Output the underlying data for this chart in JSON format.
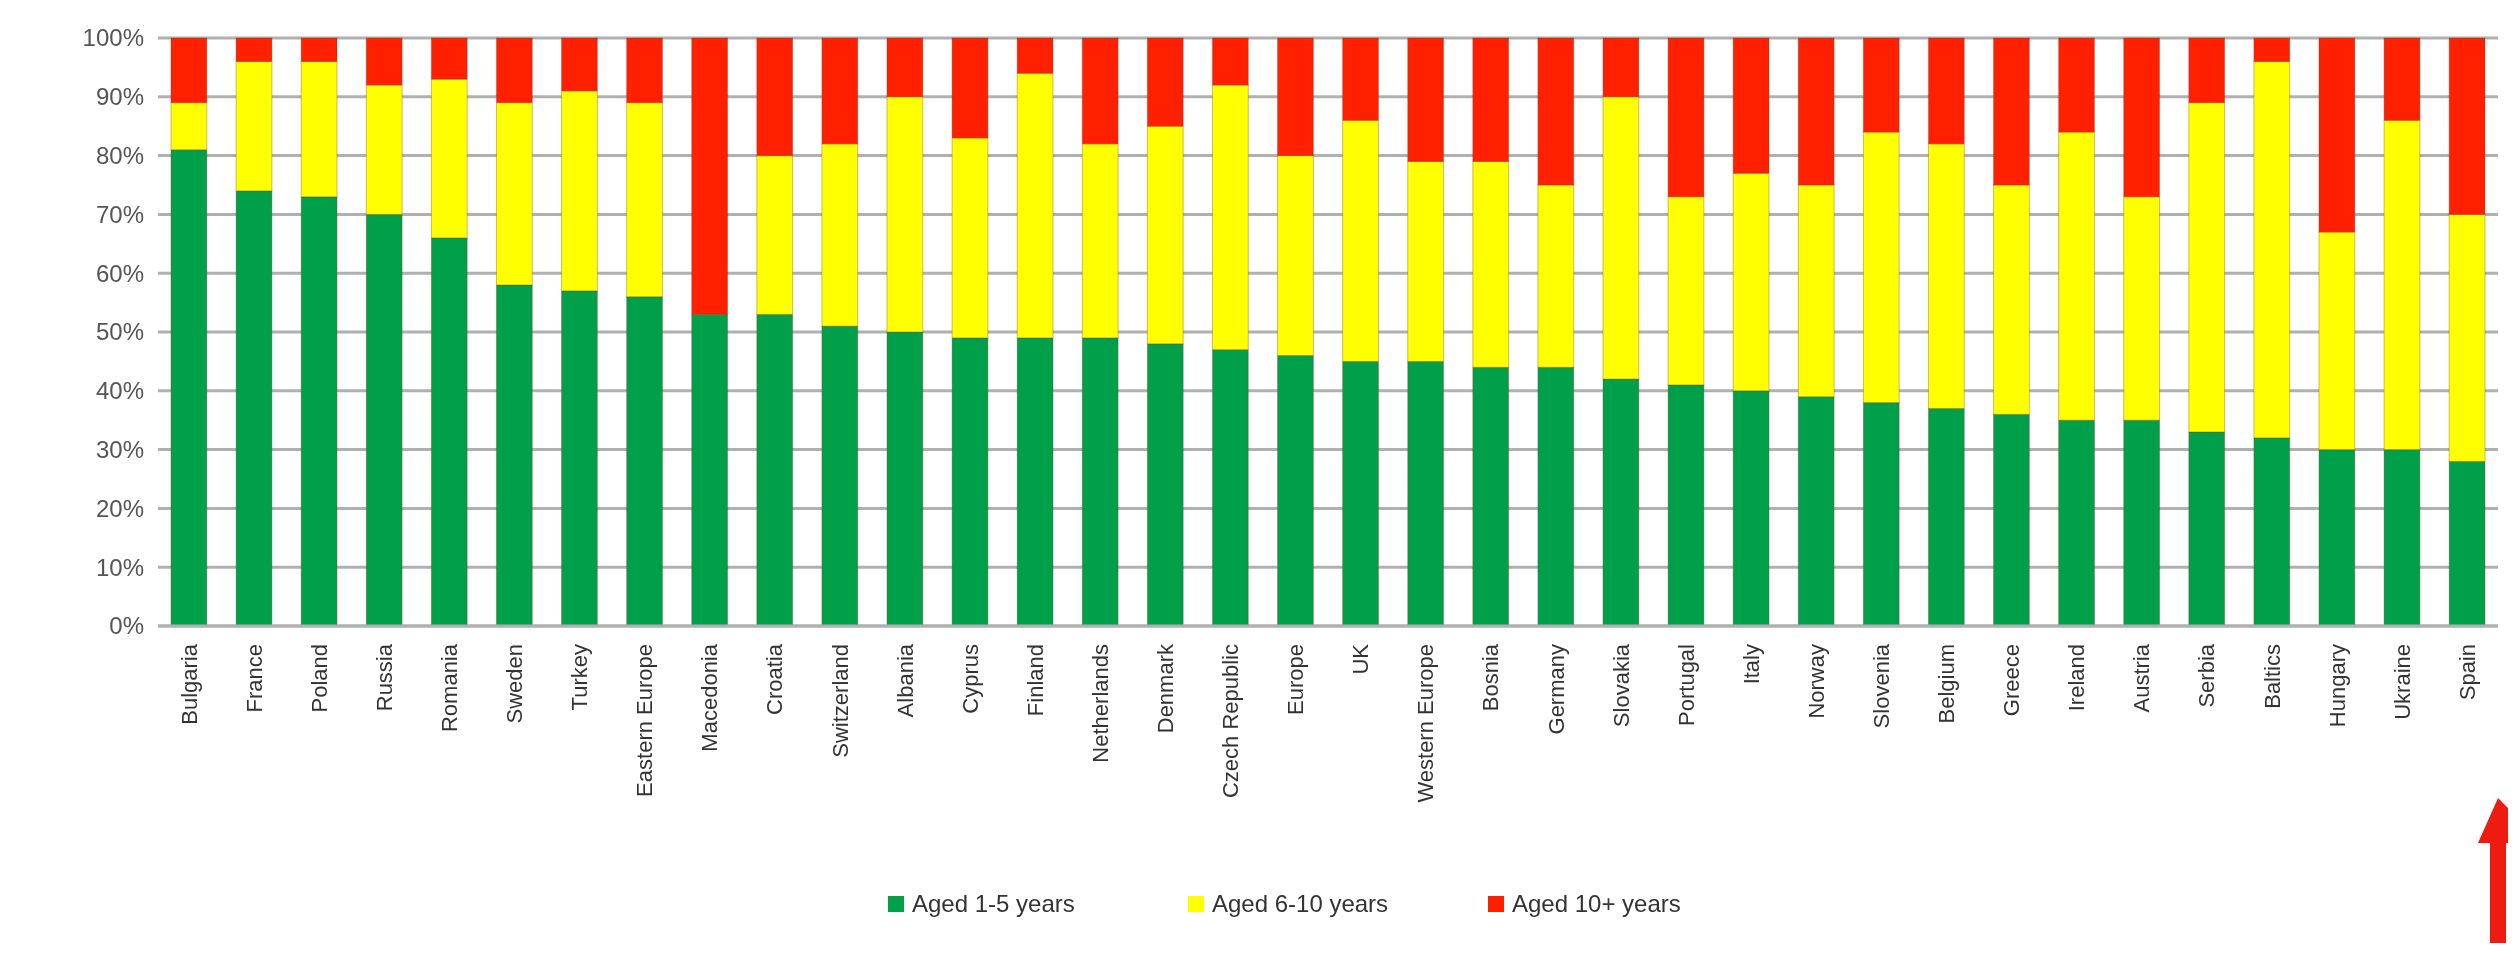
{
  "chart_data": {
    "type": "bar",
    "stacked": true,
    "categories": [
      "Bulgaria",
      "France",
      "Poland",
      "Russia",
      "Romania",
      "Sweden",
      "Turkey",
      "Eastern Europe",
      "Macedonia",
      "Croatia",
      "Switzerland",
      "Albania",
      "Cyprus",
      "Finland",
      "Netherlands",
      "Denmark",
      "Czech Republic",
      "Europe",
      "UK",
      "Western Europe",
      "Bosnia",
      "Germany",
      "Slovakia",
      "Portugal",
      "Italy",
      "Norway",
      "Slovenia",
      "Belgium",
      "Greece",
      "Ireland",
      "Austria",
      "Serbia",
      "Baltics",
      "Hungary",
      "Ukraine",
      "Spain"
    ],
    "series": [
      {
        "name": "Aged 1-5 years",
        "color": "#00a04a",
        "values": [
          81,
          74,
          73,
          70,
          66,
          58,
          57,
          56,
          53,
          53,
          51,
          50,
          49,
          49,
          49,
          48,
          47,
          46,
          45,
          45,
          44,
          44,
          42,
          41,
          40,
          39,
          38,
          37,
          36,
          35,
          35,
          33,
          32,
          30,
          30,
          28
        ]
      },
      {
        "name": "Aged 6-10 years",
        "color": "#ffff00",
        "values": [
          8,
          22,
          23,
          22,
          27,
          31,
          34,
          33,
          0,
          27,
          31,
          40,
          34,
          45,
          33,
          37,
          45,
          34,
          41,
          34,
          35,
          31,
          48,
          32,
          37,
          36,
          46,
          45,
          39,
          49,
          38,
          56,
          64,
          37,
          56,
          42
        ]
      },
      {
        "name": "Aged 10+ years",
        "color": "#ff2000",
        "values": [
          11,
          4,
          4,
          8,
          7,
          11,
          9,
          11,
          47,
          20,
          18,
          10,
          17,
          6,
          18,
          15,
          8,
          20,
          14,
          21,
          21,
          25,
          10,
          27,
          23,
          25,
          16,
          18,
          25,
          16,
          27,
          11,
          4,
          33,
          14,
          30
        ]
      }
    ],
    "ylim": [
      0,
      100
    ],
    "yticks": [
      {
        "value": 0,
        "label": "0%"
      },
      {
        "value": 10,
        "label": "10%"
      },
      {
        "value": 20,
        "label": "20%"
      },
      {
        "value": 30,
        "label": "30%"
      },
      {
        "value": 40,
        "label": "40%"
      },
      {
        "value": 50,
        "label": "50%"
      },
      {
        "value": 60,
        "label": "60%"
      },
      {
        "value": 70,
        "label": "70%"
      },
      {
        "value": 80,
        "label": "80%"
      },
      {
        "value": 90,
        "label": "90%"
      },
      {
        "value": 100,
        "label": "100%"
      }
    ],
    "grid": "y",
    "legend": "bottom"
  }
}
